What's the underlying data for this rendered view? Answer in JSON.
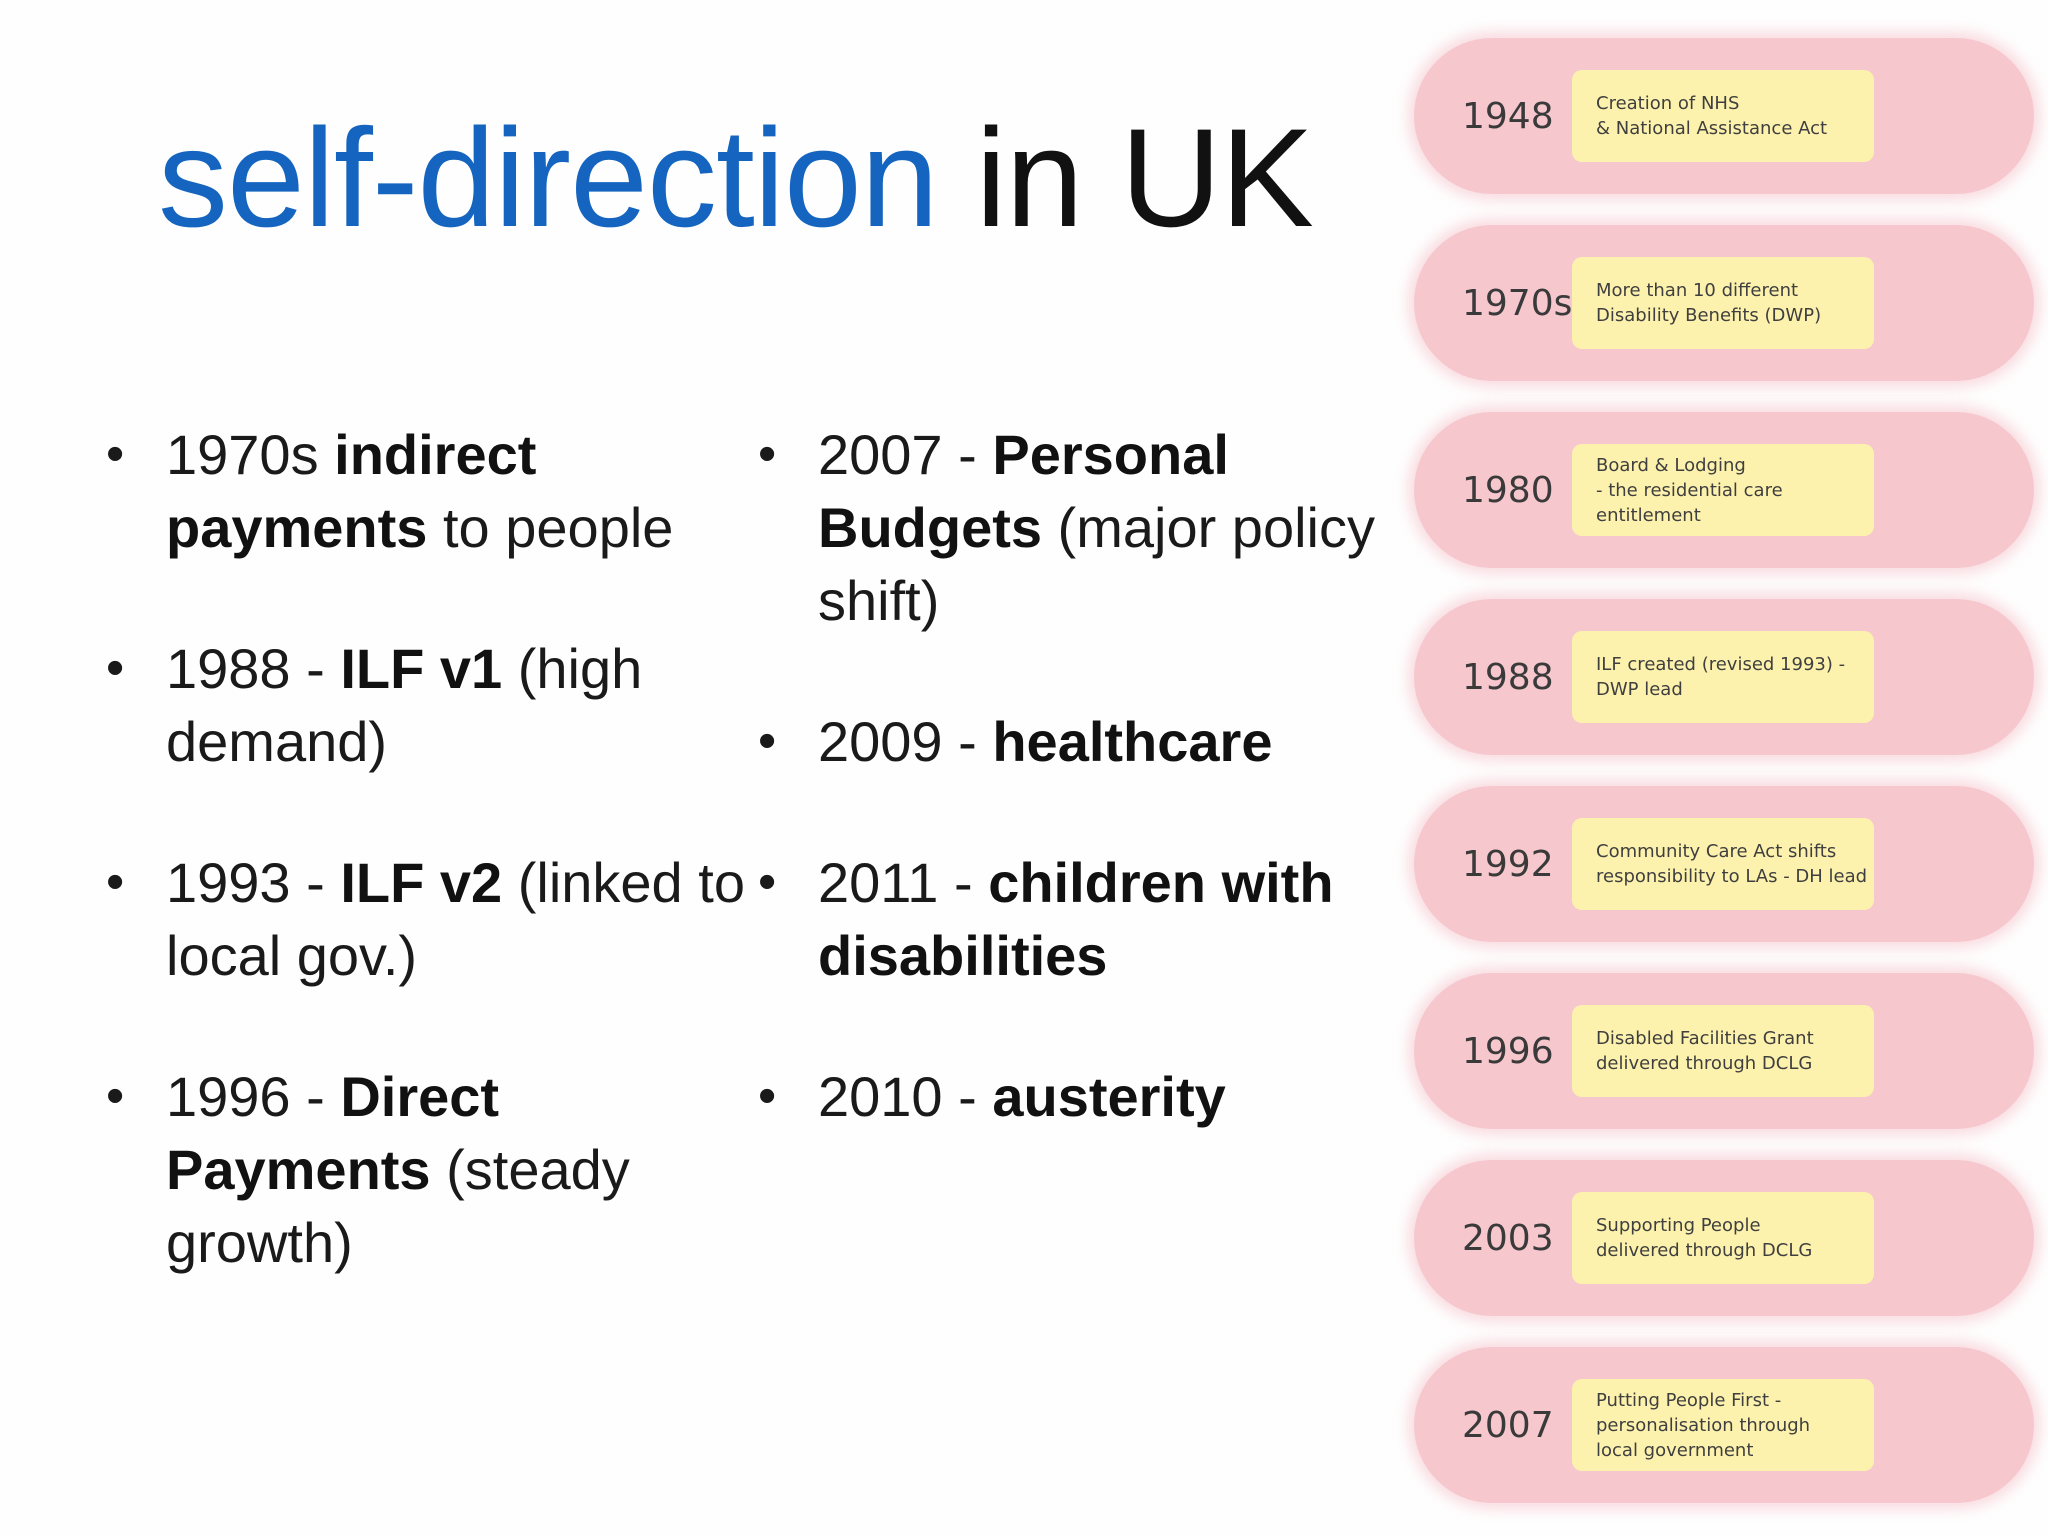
{
  "title": {
    "accent": "self-direction",
    "rest": " in UK"
  },
  "left_bullets": [
    {
      "pre": "1970s ",
      "bold": "indirect payments",
      "post": " to people"
    },
    {
      "pre": "1988 - ",
      "bold": "ILF v1",
      "post": " (high demand)"
    },
    {
      "pre": "1993 - ",
      "bold": "ILF v2",
      "post": " (linked to local gov.)"
    },
    {
      "pre": "1996 - ",
      "bold": "Direct Payments",
      "post": " (steady growth)"
    }
  ],
  "right_bullets": [
    {
      "pre": "2007 - ",
      "bold": "Personal Budgets",
      "post": " (major policy shift)"
    },
    {
      "pre": "2009 - ",
      "bold": "healthcare",
      "post": ""
    },
    {
      "pre": "2011 - ",
      "bold": "children with disabilities",
      "post": ""
    },
    {
      "pre": "2010 - ",
      "bold": "austerity",
      "post": ""
    }
  ],
  "bullet_glyph": "•",
  "timeline": [
    {
      "year": "1948",
      "lines": [
        "Creation of NHS",
        "& National Assistance Act"
      ]
    },
    {
      "year": "1970s",
      "lines": [
        "More than 10 different",
        "Disability Benefits (DWP)"
      ]
    },
    {
      "year": "1980",
      "lines": [
        "Board & Lodging",
        "- the residential care",
        "entitlement"
      ]
    },
    {
      "year": "1988",
      "lines": [
        "ILF created (revised 1993) -",
        "DWP lead"
      ]
    },
    {
      "year": "1992",
      "lines": [
        "Community Care Act shifts",
        "responsibility to LAs - DH lead"
      ]
    },
    {
      "year": "1996",
      "lines": [
        "Disabled Facilities Grant",
        "delivered through DCLG"
      ]
    },
    {
      "year": "2003",
      "lines": [
        "Supporting People",
        "delivered through DCLG"
      ]
    },
    {
      "year": "2007",
      "lines": [
        "Putting People First -",
        "personalisation through",
        "local government"
      ]
    }
  ],
  "colors": {
    "accent": "#1565c0",
    "pill": "#f6c8cd",
    "note": "#fdf2ad"
  }
}
